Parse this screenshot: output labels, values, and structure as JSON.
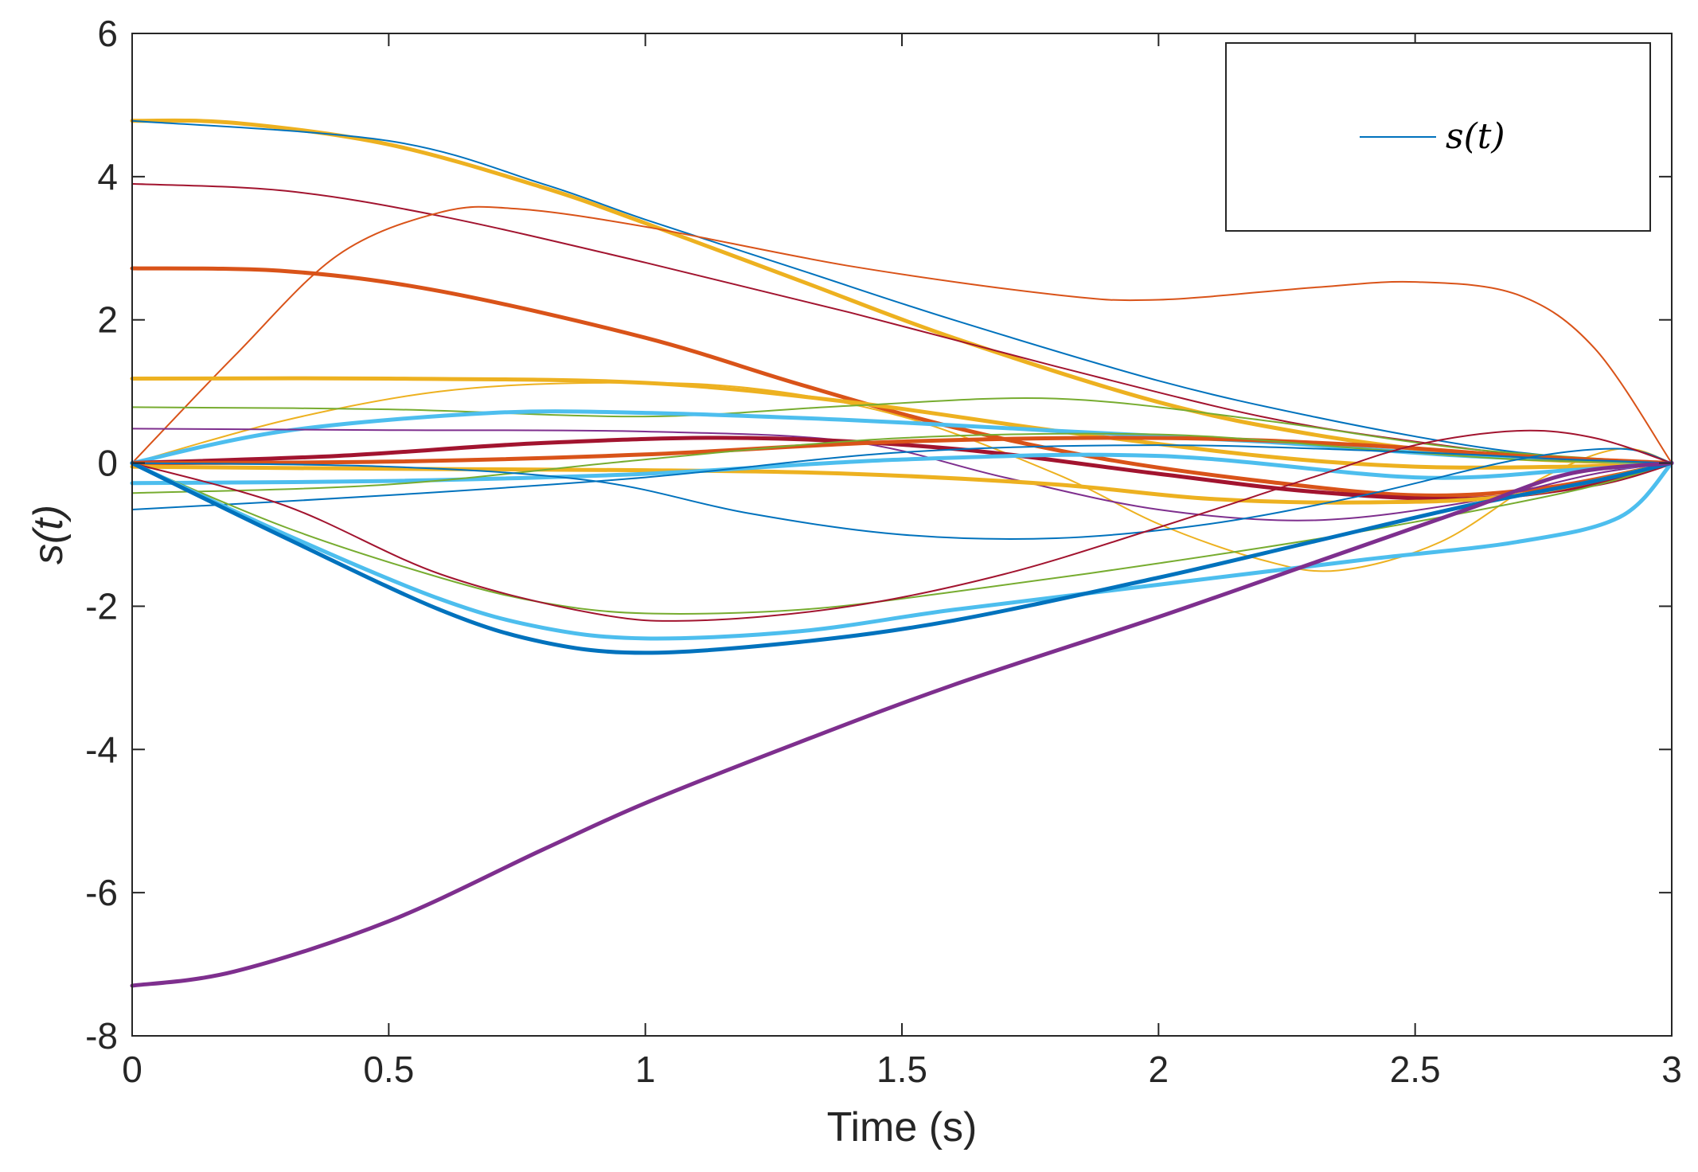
{
  "chart_data": {
    "type": "line",
    "title": "",
    "xlabel": "Time (s)",
    "ylabel": "s(t)",
    "xlim": [
      0,
      3
    ],
    "ylim": [
      -8,
      6
    ],
    "xticks": [
      0,
      0.5,
      1,
      1.5,
      2,
      2.5,
      3
    ],
    "xtick_labels": [
      "0",
      "0.5",
      "1",
      "1.5",
      "2",
      "2.5",
      "3"
    ],
    "yticks": [
      -8,
      -6,
      -4,
      -2,
      0,
      2,
      4,
      6
    ],
    "ytick_labels": [
      "-8",
      "-6",
      "-4",
      "-2",
      "0",
      "2",
      "4",
      "6"
    ],
    "grid": false,
    "legend": {
      "position": "top-right",
      "entries": [
        "s(t)"
      ]
    },
    "series": [
      {
        "name": "thick yellow (from 4.78)",
        "color": "#EDB120",
        "weight": "thick",
        "x": [
          0,
          0.2,
          0.5,
          0.8,
          1.0,
          1.3,
          1.6,
          2.0,
          2.3,
          2.6,
          2.8,
          3.0
        ],
        "y": [
          4.78,
          4.75,
          4.45,
          3.85,
          3.35,
          2.55,
          1.75,
          0.85,
          0.4,
          0.12,
          0.03,
          0
        ]
      },
      {
        "name": "thin blue (from 4.78)",
        "color": "#0072BD",
        "weight": "thin",
        "x": [
          0,
          0.5,
          0.8,
          1.0,
          1.3,
          1.6,
          2.0,
          2.3,
          2.6,
          2.8,
          3.0
        ],
        "y": [
          4.78,
          4.5,
          3.9,
          3.4,
          2.7,
          2.0,
          1.15,
          0.65,
          0.25,
          0.08,
          0
        ]
      },
      {
        "name": "thin dark red (from 3.9)",
        "color": "#A2142F",
        "weight": "thin",
        "x": [
          0,
          0.3,
          0.6,
          1.0,
          1.4,
          1.8,
          2.2,
          2.5,
          2.8,
          3.0
        ],
        "y": [
          3.9,
          3.8,
          3.45,
          2.8,
          2.1,
          1.35,
          0.65,
          0.3,
          0.05,
          0
        ]
      },
      {
        "name": "thin orange (0 → 3.55 → 2.5)",
        "color": "#D95319",
        "weight": "thin",
        "x": [
          0,
          0.2,
          0.4,
          0.6,
          0.75,
          1.0,
          1.4,
          1.8,
          2.0,
          2.3,
          2.5,
          2.7,
          2.85,
          3.0
        ],
        "y": [
          0,
          1.5,
          2.9,
          3.5,
          3.55,
          3.3,
          2.75,
          2.35,
          2.28,
          2.45,
          2.53,
          2.35,
          1.6,
          0
        ]
      },
      {
        "name": "thick orange (from 2.72)",
        "color": "#D95319",
        "weight": "thick",
        "x": [
          0,
          0.3,
          0.6,
          1.0,
          1.3,
          1.6,
          1.9,
          2.2,
          2.5,
          2.75,
          3.0
        ],
        "y": [
          2.72,
          2.68,
          2.4,
          1.75,
          1.1,
          0.5,
          0.05,
          -0.25,
          -0.45,
          -0.35,
          0
        ]
      },
      {
        "name": "thick yellow (from 1.18)",
        "color": "#EDB120",
        "weight": "thick",
        "x": [
          0,
          0.5,
          1.0,
          1.4,
          1.8,
          2.2,
          2.5,
          2.8,
          3.0
        ],
        "y": [
          1.18,
          1.18,
          1.12,
          0.85,
          0.45,
          0.1,
          -0.05,
          -0.05,
          0
        ]
      },
      {
        "name": "thin yellow (0 → 1.12 → -1.5)",
        "color": "#EDB120",
        "weight": "thin",
        "x": [
          0,
          0.3,
          0.6,
          0.9,
          1.2,
          1.5,
          1.8,
          2.0,
          2.2,
          2.35,
          2.55,
          2.75,
          2.9,
          3.0
        ],
        "y": [
          0,
          0.6,
          1.0,
          1.12,
          1.05,
          0.65,
          -0.15,
          -0.85,
          -1.35,
          -1.5,
          -1.1,
          -0.2,
          0.2,
          0
        ]
      },
      {
        "name": "thin green (0.78 → 0.9)",
        "color": "#77AC30",
        "weight": "thin",
        "x": [
          0,
          0.5,
          1.0,
          1.4,
          1.8,
          2.2,
          2.6,
          3.0
        ],
        "y": [
          0.78,
          0.75,
          0.65,
          0.8,
          0.9,
          0.6,
          0.2,
          0
        ]
      },
      {
        "name": "thick light blue (0 → 0.7)",
        "color": "#4DBEEE",
        "weight": "thick",
        "x": [
          0,
          0.3,
          0.7,
          1.0,
          1.4,
          1.8,
          2.2,
          2.6,
          3.0
        ],
        "y": [
          0,
          0.45,
          0.7,
          0.7,
          0.6,
          0.45,
          0.3,
          0.1,
          0
        ]
      },
      {
        "name": "thin purple (0.48)",
        "color": "#7E2F8E",
        "weight": "thin",
        "x": [
          0,
          0.5,
          1.0,
          1.4,
          1.7,
          2.0,
          2.3,
          2.6,
          2.85,
          3.0
        ],
        "y": [
          0.48,
          0.46,
          0.44,
          0.3,
          -0.2,
          -0.65,
          -0.8,
          -0.55,
          -0.15,
          0
        ]
      },
      {
        "name": "thick dark red (0 → 0.35 → -0.5)",
        "color": "#A2142F",
        "weight": "thick",
        "x": [
          0,
          0.4,
          0.8,
          1.2,
          1.6,
          2.0,
          2.3,
          2.6,
          2.85,
          3.0
        ],
        "y": [
          0,
          0.1,
          0.28,
          0.35,
          0.2,
          -0.15,
          -0.4,
          -0.5,
          -0.3,
          0
        ]
      },
      {
        "name": "thick orange (0 → 0.35)",
        "color": "#D95319",
        "weight": "thick",
        "x": [
          0,
          0.5,
          1.0,
          1.5,
          2.0,
          2.4,
          2.7,
          3.0
        ],
        "y": [
          0,
          0.02,
          0.12,
          0.3,
          0.35,
          0.25,
          0.1,
          0
        ]
      },
      {
        "name": "thick yellow (-0.05 → -0.55)",
        "color": "#EDB120",
        "weight": "thick",
        "x": [
          0,
          0.5,
          1.0,
          1.4,
          1.8,
          2.1,
          2.4,
          2.7,
          3.0
        ],
        "y": [
          -0.05,
          -0.08,
          -0.1,
          -0.15,
          -0.3,
          -0.5,
          -0.55,
          -0.45,
          0
        ]
      },
      {
        "name": "thick light blue (-0.28)",
        "color": "#4DBEEE",
        "weight": "thick",
        "x": [
          0,
          0.5,
          1.0,
          1.5,
          2.0,
          2.5,
          2.8,
          3.0
        ],
        "y": [
          -0.28,
          -0.25,
          -0.15,
          0.05,
          0.1,
          -0.2,
          -0.1,
          0
        ]
      },
      {
        "name": "thin green (-0.42)",
        "color": "#77AC30",
        "weight": "thin",
        "x": [
          0,
          0.5,
          1.0,
          1.5,
          2.0,
          2.4,
          2.7,
          3.0
        ],
        "y": [
          -0.42,
          -0.3,
          0.05,
          0.35,
          0.4,
          0.2,
          0.05,
          0
        ]
      },
      {
        "name": "thin blue (-0.65)",
        "color": "#0072BD",
        "weight": "thin",
        "x": [
          0,
          0.5,
          1.0,
          1.5,
          2.0,
          2.5,
          2.8,
          3.0
        ],
        "y": [
          -0.65,
          -0.45,
          -0.2,
          0.15,
          0.25,
          0.15,
          0.05,
          0
        ]
      },
      {
        "name": "thin blue (0 → -1.05)",
        "color": "#0072BD",
        "weight": "thin",
        "x": [
          0,
          0.5,
          0.9,
          1.2,
          1.5,
          1.8,
          2.1,
          2.4,
          2.7,
          2.9,
          3.0
        ],
        "y": [
          0,
          -0.05,
          -0.25,
          -0.7,
          -1.0,
          -1.05,
          -0.85,
          -0.45,
          0.05,
          0.2,
          0
        ]
      },
      {
        "name": "thin green (0 → -2.1)",
        "color": "#77AC30",
        "weight": "thin",
        "x": [
          0,
          0.3,
          0.6,
          0.8,
          1.0,
          1.3,
          1.6,
          2.0,
          2.4,
          2.8,
          3.0
        ],
        "y": [
          0,
          -0.9,
          -1.6,
          -1.95,
          -2.1,
          -2.05,
          -1.8,
          -1.4,
          -0.95,
          -0.4,
          0
        ]
      },
      {
        "name": "thin dark red (0 → -2.2 → 0.45)",
        "color": "#A2142F",
        "weight": "thin",
        "x": [
          0,
          0.3,
          0.6,
          0.9,
          1.1,
          1.4,
          1.7,
          2.0,
          2.3,
          2.5,
          2.7,
          2.85,
          3.0
        ],
        "y": [
          0,
          -0.6,
          -1.55,
          -2.1,
          -2.2,
          -2.0,
          -1.55,
          -0.9,
          -0.2,
          0.25,
          0.45,
          0.35,
          0
        ]
      },
      {
        "name": "thick light blue (0 → -2.45)",
        "color": "#4DBEEE",
        "weight": "thick",
        "x": [
          0,
          0.3,
          0.6,
          0.8,
          1.0,
          1.3,
          1.6,
          2.0,
          2.4,
          2.7,
          2.9,
          3.0
        ],
        "y": [
          0,
          -1.0,
          -1.9,
          -2.3,
          -2.45,
          -2.35,
          -2.05,
          -1.7,
          -1.35,
          -1.1,
          -0.75,
          0
        ]
      },
      {
        "name": "thick blue (0 → -2.65)",
        "color": "#0072BD",
        "weight": "thick",
        "x": [
          0,
          0.3,
          0.6,
          0.8,
          1.0,
          1.3,
          1.6,
          2.0,
          2.3,
          2.6,
          2.85,
          3.0
        ],
        "y": [
          0,
          -1.05,
          -2.05,
          -2.5,
          -2.65,
          -2.5,
          -2.2,
          -1.6,
          -1.1,
          -0.6,
          -0.25,
          0
        ]
      },
      {
        "name": "thick purple (from -7.3)",
        "color": "#7E2F8E",
        "weight": "thick",
        "x": [
          0,
          0.2,
          0.5,
          0.8,
          1.0,
          1.3,
          1.6,
          2.0,
          2.3,
          2.6,
          2.8,
          3.0
        ],
        "y": [
          -7.3,
          -7.1,
          -6.4,
          -5.4,
          -4.75,
          -3.9,
          -3.1,
          -2.15,
          -1.4,
          -0.65,
          -0.15,
          0
        ]
      }
    ]
  }
}
